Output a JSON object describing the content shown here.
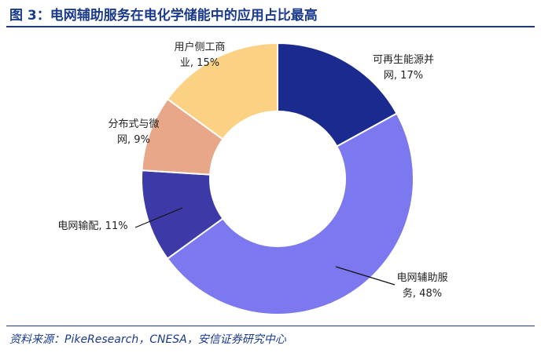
{
  "figure": {
    "title": "图 3：电网辅助服务在电化学储能中的应用占比最高",
    "source": "资料来源：PikeResearch，CNESA，安信证券研究中心"
  },
  "chart_data": {
    "type": "pie",
    "style": "donut",
    "start_angle_deg": 0,
    "direction": "clockwise",
    "categories": [
      "可再生能源并网",
      "电网辅助服务",
      "电网输配",
      "分布式与微网",
      "用户侧工商业"
    ],
    "values": [
      17,
      48,
      11,
      9,
      15
    ],
    "unit": "%",
    "colors": [
      "#1b2a8f",
      "#7b78f0",
      "#3d3aa8",
      "#e9a78a",
      "#fbd184"
    ],
    "labels": [
      {
        "lines": [
          "可再生能源并",
          "网, 17%"
        ]
      },
      {
        "lines": [
          "电网辅助服",
          "务, 48%"
        ]
      },
      {
        "lines": [
          "电网输配, 11%"
        ]
      },
      {
        "lines": [
          "分布式与微",
          "网, 9%"
        ]
      },
      {
        "lines": [
          "用户侧工商",
          "业, 15%"
        ]
      }
    ]
  }
}
